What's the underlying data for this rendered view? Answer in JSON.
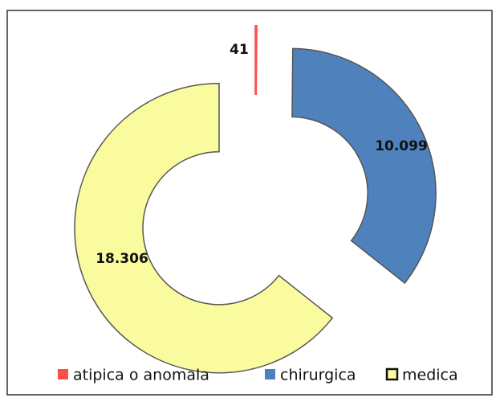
{
  "chart_data": {
    "type": "donut",
    "categories": [
      "atipica o anomala",
      "chirurgica",
      "medica"
    ],
    "values": [
      41,
      10099,
      18306
    ],
    "value_labels": [
      "41",
      "10.099",
      "18.306"
    ],
    "colors": [
      "#ff4d4d",
      "#4f81bd",
      "#fafa9e"
    ],
    "legend": "bottom"
  }
}
